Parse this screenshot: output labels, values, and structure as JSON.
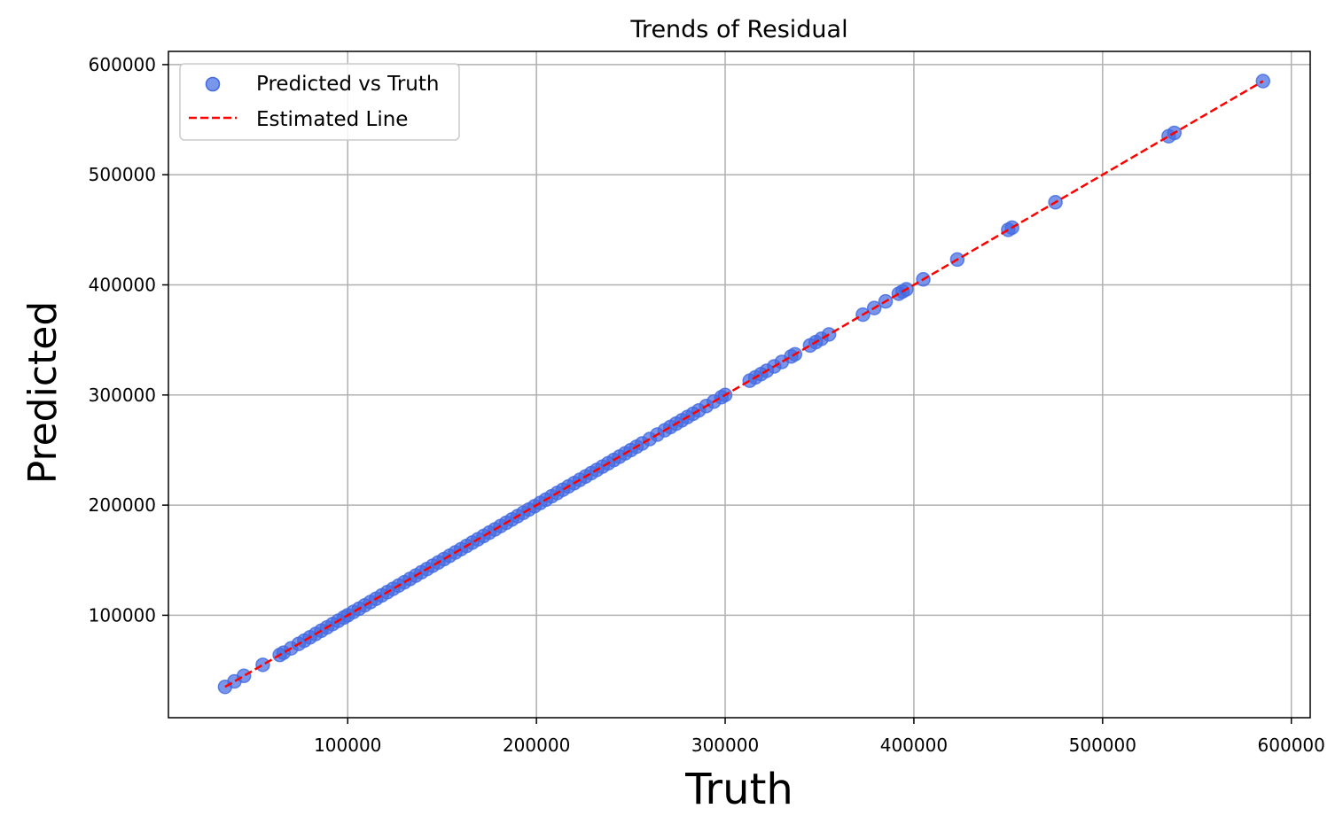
{
  "chart_data": {
    "type": "scatter",
    "title": "Trends of Residual",
    "xlabel": "Truth",
    "ylabel": "Predicted",
    "xlim": [
      5000,
      610000
    ],
    "ylim": [
      7000,
      612000
    ],
    "xticks": [
      100000,
      200000,
      300000,
      400000,
      500000,
      600000
    ],
    "yticks": [
      100000,
      200000,
      300000,
      400000,
      500000,
      600000
    ],
    "xtick_labels": [
      "100000",
      "200000",
      "300000",
      "400000",
      "500000",
      "600000"
    ],
    "ytick_labels": [
      "100000",
      "200000",
      "300000",
      "400000",
      "500000",
      "600000"
    ],
    "grid": true,
    "legend_position": "top-left",
    "colors": {
      "points": "#4169e1",
      "line": "#ff0000",
      "grid": "#b0b0b0"
    },
    "series": [
      {
        "name": "Predicted vs Truth",
        "kind": "scatter",
        "x": [
          35000,
          40000,
          45000,
          55000,
          64000,
          66000,
          70000,
          74000,
          77000,
          80000,
          83000,
          86000,
          89000,
          92000,
          95000,
          98000,
          100000,
          103000,
          106000,
          109000,
          112000,
          115000,
          118000,
          121000,
          124000,
          127000,
          130000,
          133000,
          136000,
          139000,
          142000,
          145000,
          148000,
          151000,
          154000,
          157000,
          160000,
          163000,
          166000,
          169000,
          172000,
          175000,
          178000,
          181000,
          184000,
          187000,
          190000,
          193000,
          196000,
          199000,
          202000,
          205000,
          208000,
          211000,
          214000,
          217000,
          220000,
          223000,
          226000,
          229000,
          232000,
          235000,
          238000,
          241000,
          244000,
          247000,
          250000,
          253000,
          256000,
          260000,
          264000,
          268000,
          271000,
          274000,
          277000,
          280000,
          283000,
          286000,
          290000,
          294000,
          298000,
          300000,
          313000,
          316000,
          319000,
          322000,
          326000,
          330000,
          335000,
          337000,
          345000,
          348000,
          351000,
          355000,
          373000,
          379000,
          385000,
          392000,
          394000,
          396000,
          405000,
          423000,
          450000,
          452000,
          475000,
          535000,
          538000,
          585000
        ],
        "y": [
          35000,
          40000,
          45000,
          55000,
          64000,
          66000,
          70000,
          74000,
          77000,
          80000,
          83000,
          86000,
          89000,
          92000,
          95000,
          98000,
          100000,
          103000,
          106000,
          109000,
          112000,
          115000,
          118000,
          121000,
          124000,
          127000,
          130000,
          133000,
          136000,
          139000,
          142000,
          145000,
          148000,
          151000,
          154000,
          157000,
          160000,
          163000,
          166000,
          169000,
          172000,
          175000,
          178000,
          181000,
          184000,
          187000,
          190000,
          193000,
          196000,
          199000,
          202000,
          205000,
          208000,
          211000,
          214000,
          217000,
          220000,
          223000,
          226000,
          229000,
          232000,
          235000,
          238000,
          241000,
          244000,
          247000,
          250000,
          253000,
          256000,
          260000,
          264000,
          268000,
          271000,
          274000,
          277000,
          280000,
          283000,
          286000,
          290000,
          294000,
          298000,
          300000,
          313000,
          316000,
          319000,
          322000,
          326000,
          330000,
          335000,
          337000,
          345000,
          348000,
          351000,
          355000,
          373000,
          379000,
          385000,
          392000,
          394000,
          396000,
          405000,
          423000,
          450000,
          452000,
          475000,
          535000,
          538000,
          585000
        ]
      },
      {
        "name": "Estimated Line",
        "kind": "line",
        "style": "dashed",
        "x": [
          35000,
          585000
        ],
        "y": [
          35000,
          585000
        ]
      }
    ]
  }
}
